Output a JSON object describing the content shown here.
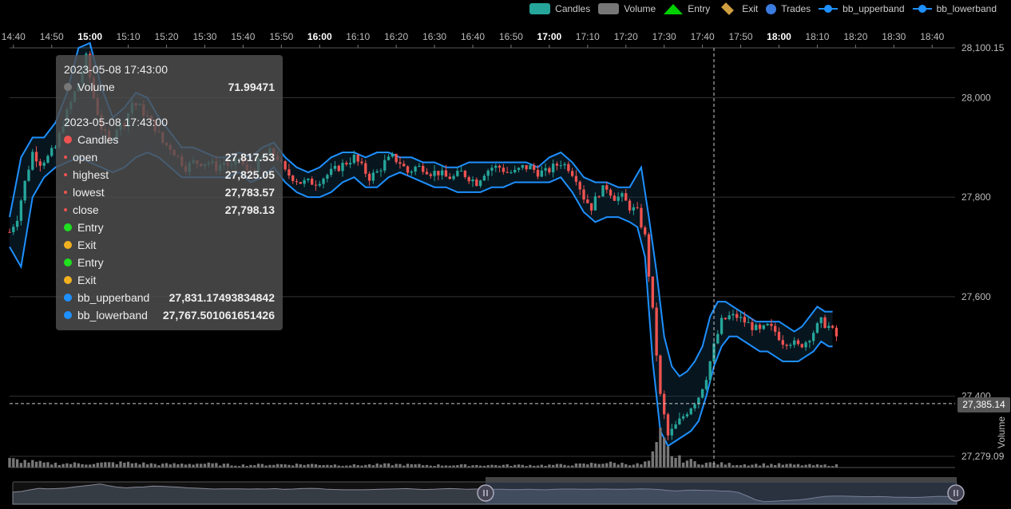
{
  "legend": {
    "candles": "Candles",
    "volume": "Volume",
    "entry": "Entry",
    "exit": "Exit",
    "trades": "Trades",
    "bb_upper": "bb_upperband",
    "bb_lower": "bb_lowerband"
  },
  "colors": {
    "candles": "#26a69a",
    "volume": "#777777",
    "entry": "#00d000",
    "exit": "#d0a040",
    "trades": "#3c7be0",
    "bands": "#1e90ff",
    "up": "#26a69a",
    "down": "#ef5350"
  },
  "tooltip": {
    "time1": "2023-05-08 17:43:00",
    "volume_label": "Volume",
    "volume_value": "71.99471",
    "time2": "2023-05-08 17:43:00",
    "candles_label": "Candles",
    "open_label": "open",
    "open_value": "27,817.53",
    "high_label": "highest",
    "high_value": "27,825.05",
    "low_label": "lowest",
    "low_value": "27,783.57",
    "close_label": "close",
    "close_value": "27,798.13",
    "entry1": "Entry",
    "exit1": "Exit",
    "entry2": "Entry",
    "exit2": "Exit",
    "bbu_label": "bb_upperband",
    "bbu_value": "27,831.17493834842",
    "bbl_label": "bb_lowerband",
    "bbl_value": "27,767.501061651426"
  },
  "axis": {
    "crosshair_price": "27,385.14",
    "volume_axis_label": "Volume"
  },
  "chart_data": {
    "type": "candlestick",
    "x_range": [
      "14:39",
      "18:46"
    ],
    "ylim": [
      27279.09,
      28100.15
    ],
    "x_ticks": [
      "14:40",
      "14:50",
      "15:00",
      "15:10",
      "15:20",
      "15:30",
      "15:40",
      "15:50",
      "16:00",
      "16:10",
      "16:20",
      "16:30",
      "16:40",
      "16:50",
      "17:00",
      "17:10",
      "17:20",
      "17:30",
      "17:40",
      "17:50",
      "18:00",
      "18:10",
      "18:20",
      "18:30",
      "18:40"
    ],
    "x_ticks_bold": [
      "15:00",
      "16:00",
      "17:00",
      "18:00"
    ],
    "y_ticks": [
      "28,100.15",
      "28,000",
      "27,800",
      "27,600",
      "27,400",
      "27,279.09"
    ],
    "close_path": [
      [
        0,
        27730
      ],
      [
        2,
        27760
      ],
      [
        4,
        27830
      ],
      [
        6,
        27890
      ],
      [
        8,
        27870
      ],
      [
        10,
        27880
      ],
      [
        12,
        27900
      ],
      [
        14,
        27950
      ],
      [
        16,
        27990
      ],
      [
        18,
        28030
      ],
      [
        20,
        28080
      ],
      [
        22,
        28000
      ],
      [
        24,
        27940
      ],
      [
        26,
        27910
      ],
      [
        28,
        27940
      ],
      [
        30,
        27950
      ],
      [
        32,
        27990
      ],
      [
        34,
        27980
      ],
      [
        36,
        27960
      ],
      [
        38,
        27940
      ],
      [
        40,
        27910
      ],
      [
        42,
        27900
      ],
      [
        44,
        27880
      ],
      [
        46,
        27860
      ],
      [
        48,
        27870
      ],
      [
        50,
        27870
      ],
      [
        52,
        27870
      ],
      [
        54,
        27860
      ],
      [
        56,
        27870
      ],
      [
        58,
        27860
      ],
      [
        60,
        27880
      ],
      [
        62,
        27850
      ],
      [
        64,
        27860
      ],
      [
        66,
        27880
      ],
      [
        68,
        27890
      ],
      [
        70,
        27880
      ],
      [
        72,
        27850
      ],
      [
        74,
        27840
      ],
      [
        76,
        27830
      ],
      [
        78,
        27830
      ],
      [
        80,
        27830
      ],
      [
        82,
        27840
      ],
      [
        84,
        27850
      ],
      [
        86,
        27860
      ],
      [
        88,
        27870
      ],
      [
        90,
        27880
      ],
      [
        92,
        27860
      ],
      [
        94,
        27840
      ],
      [
        96,
        27850
      ],
      [
        98,
        27870
      ],
      [
        100,
        27880
      ],
      [
        102,
        27870
      ],
      [
        104,
        27850
      ],
      [
        106,
        27860
      ],
      [
        108,
        27860
      ],
      [
        110,
        27850
      ],
      [
        112,
        27850
      ],
      [
        114,
        27840
      ],
      [
        116,
        27840
      ],
      [
        118,
        27850
      ],
      [
        120,
        27840
      ],
      [
        122,
        27830
      ],
      [
        124,
        27850
      ],
      [
        126,
        27860
      ],
      [
        128,
        27860
      ],
      [
        130,
        27850
      ],
      [
        132,
        27850
      ],
      [
        134,
        27860
      ],
      [
        136,
        27860
      ],
      [
        138,
        27850
      ],
      [
        140,
        27850
      ],
      [
        142,
        27860
      ],
      [
        144,
        27870
      ],
      [
        146,
        27860
      ],
      [
        148,
        27840
      ],
      [
        150,
        27800
      ],
      [
        152,
        27780
      ],
      [
        154,
        27810
      ],
      [
        156,
        27820
      ],
      [
        158,
        27800
      ],
      [
        160,
        27800
      ],
      [
        162,
        27780
      ],
      [
        164,
        27770
      ],
      [
        166,
        27720
      ],
      [
        168,
        27570
      ],
      [
        170,
        27400
      ],
      [
        172,
        27320
      ],
      [
        174,
        27340
      ],
      [
        176,
        27360
      ],
      [
        178,
        27380
      ],
      [
        180,
        27400
      ],
      [
        182,
        27440
      ],
      [
        184,
        27500
      ],
      [
        186,
        27550
      ],
      [
        188,
        27560
      ],
      [
        190,
        27560
      ],
      [
        192,
        27550
      ],
      [
        194,
        27540
      ],
      [
        196,
        27530
      ],
      [
        198,
        27540
      ],
      [
        200,
        27530
      ],
      [
        202,
        27510
      ],
      [
        204,
        27510
      ],
      [
        206,
        27500
      ],
      [
        208,
        27510
      ],
      [
        210,
        27530
      ],
      [
        212,
        27550
      ],
      [
        214,
        27540
      ],
      [
        216,
        27520
      ]
    ],
    "bb_upper": [
      [
        0,
        27760
      ],
      [
        3,
        27880
      ],
      [
        6,
        27920
      ],
      [
        9,
        27920
      ],
      [
        12,
        27950
      ],
      [
        15,
        28010
      ],
      [
        18,
        28100
      ],
      [
        21,
        28110
      ],
      [
        24,
        28020
      ],
      [
        27,
        27960
      ],
      [
        30,
        27980
      ],
      [
        33,
        28010
      ],
      [
        36,
        28000
      ],
      [
        39,
        27960
      ],
      [
        42,
        27930
      ],
      [
        45,
        27900
      ],
      [
        48,
        27900
      ],
      [
        51,
        27890
      ],
      [
        54,
        27880
      ],
      [
        57,
        27880
      ],
      [
        60,
        27890
      ],
      [
        63,
        27880
      ],
      [
        66,
        27900
      ],
      [
        69,
        27910
      ],
      [
        72,
        27880
      ],
      [
        75,
        27860
      ],
      [
        78,
        27850
      ],
      [
        81,
        27860
      ],
      [
        84,
        27880
      ],
      [
        87,
        27890
      ],
      [
        90,
        27890
      ],
      [
        93,
        27880
      ],
      [
        96,
        27890
      ],
      [
        99,
        27890
      ],
      [
        102,
        27880
      ],
      [
        105,
        27880
      ],
      [
        108,
        27870
      ],
      [
        111,
        27870
      ],
      [
        114,
        27860
      ],
      [
        117,
        27860
      ],
      [
        120,
        27870
      ],
      [
        123,
        27870
      ],
      [
        126,
        27870
      ],
      [
        129,
        27870
      ],
      [
        132,
        27870
      ],
      [
        135,
        27870
      ],
      [
        138,
        27860
      ],
      [
        141,
        27880
      ],
      [
        144,
        27890
      ],
      [
        147,
        27870
      ],
      [
        150,
        27840
      ],
      [
        153,
        27830
      ],
      [
        156,
        27830
      ],
      [
        159,
        27820
      ],
      [
        162,
        27820
      ],
      [
        165,
        27860
      ],
      [
        167,
        27760
      ],
      [
        169,
        27650
      ],
      [
        171,
        27520
      ],
      [
        173,
        27460
      ],
      [
        175,
        27440
      ],
      [
        177,
        27450
      ],
      [
        179,
        27470
      ],
      [
        181,
        27500
      ],
      [
        183,
        27560
      ],
      [
        185,
        27590
      ],
      [
        187,
        27590
      ],
      [
        189,
        27580
      ],
      [
        191,
        27570
      ],
      [
        193,
        27560
      ],
      [
        195,
        27550
      ],
      [
        197,
        27550
      ],
      [
        199,
        27550
      ],
      [
        201,
        27550
      ],
      [
        203,
        27540
      ],
      [
        205,
        27530
      ],
      [
        207,
        27540
      ],
      [
        209,
        27560
      ],
      [
        211,
        27580
      ],
      [
        213,
        27570
      ],
      [
        215,
        27570
      ]
    ],
    "bb_lower": [
      [
        0,
        27700
      ],
      [
        3,
        27660
      ],
      [
        6,
        27800
      ],
      [
        9,
        27840
      ],
      [
        12,
        27860
      ],
      [
        15,
        27870
      ],
      [
        18,
        27880
      ],
      [
        21,
        27870
      ],
      [
        24,
        27860
      ],
      [
        27,
        27850
      ],
      [
        30,
        27860
      ],
      [
        33,
        27880
      ],
      [
        36,
        27890
      ],
      [
        39,
        27880
      ],
      [
        42,
        27860
      ],
      [
        45,
        27840
      ],
      [
        48,
        27840
      ],
      [
        51,
        27840
      ],
      [
        54,
        27840
      ],
      [
        57,
        27840
      ],
      [
        60,
        27850
      ],
      [
        63,
        27830
      ],
      [
        66,
        27840
      ],
      [
        69,
        27860
      ],
      [
        72,
        27830
      ],
      [
        75,
        27810
      ],
      [
        78,
        27800
      ],
      [
        81,
        27800
      ],
      [
        84,
        27810
      ],
      [
        87,
        27830
      ],
      [
        90,
        27840
      ],
      [
        93,
        27820
      ],
      [
        96,
        27820
      ],
      [
        99,
        27840
      ],
      [
        102,
        27850
      ],
      [
        105,
        27840
      ],
      [
        108,
        27830
      ],
      [
        111,
        27820
      ],
      [
        114,
        27820
      ],
      [
        117,
        27810
      ],
      [
        120,
        27810
      ],
      [
        123,
        27810
      ],
      [
        126,
        27820
      ],
      [
        129,
        27820
      ],
      [
        132,
        27830
      ],
      [
        135,
        27830
      ],
      [
        138,
        27830
      ],
      [
        141,
        27830
      ],
      [
        144,
        27840
      ],
      [
        147,
        27810
      ],
      [
        150,
        27770
      ],
      [
        153,
        27750
      ],
      [
        156,
        27760
      ],
      [
        159,
        27760
      ],
      [
        162,
        27750
      ],
      [
        164,
        27740
      ],
      [
        166,
        27680
      ],
      [
        168,
        27470
      ],
      [
        170,
        27330
      ],
      [
        172,
        27300
      ],
      [
        174,
        27310
      ],
      [
        176,
        27320
      ],
      [
        178,
        27330
      ],
      [
        180,
        27350
      ],
      [
        182,
        27400
      ],
      [
        184,
        27460
      ],
      [
        186,
        27500
      ],
      [
        188,
        27520
      ],
      [
        190,
        27520
      ],
      [
        192,
        27510
      ],
      [
        194,
        27500
      ],
      [
        196,
        27490
      ],
      [
        198,
        27490
      ],
      [
        200,
        27480
      ],
      [
        202,
        27470
      ],
      [
        204,
        27470
      ],
      [
        206,
        27470
      ],
      [
        208,
        27480
      ],
      [
        210,
        27490
      ],
      [
        212,
        27510
      ],
      [
        214,
        27500
      ],
      [
        215,
        27500
      ]
    ],
    "volume": [
      [
        0,
        10
      ],
      [
        10,
        5
      ],
      [
        20,
        5
      ],
      [
        30,
        6
      ],
      [
        40,
        4
      ],
      [
        50,
        5
      ],
      [
        60,
        3
      ],
      [
        70,
        4
      ],
      [
        80,
        4
      ],
      [
        90,
        3
      ],
      [
        100,
        4
      ],
      [
        110,
        3
      ],
      [
        120,
        3
      ],
      [
        130,
        3
      ],
      [
        140,
        3
      ],
      [
        150,
        4
      ],
      [
        155,
        6
      ],
      [
        160,
        5
      ],
      [
        165,
        4
      ],
      [
        167,
        8
      ],
      [
        168,
        15
      ],
      [
        169,
        25
      ],
      [
        170,
        38
      ],
      [
        171,
        30
      ],
      [
        172,
        22
      ],
      [
        173,
        18
      ],
      [
        174,
        12
      ],
      [
        176,
        10
      ],
      [
        178,
        8
      ],
      [
        180,
        6
      ],
      [
        185,
        5
      ],
      [
        190,
        4
      ],
      [
        200,
        4
      ],
      [
        210,
        3
      ],
      [
        215,
        3
      ]
    ],
    "crosshair_x": 184,
    "crosshair_price": 27385.14
  }
}
